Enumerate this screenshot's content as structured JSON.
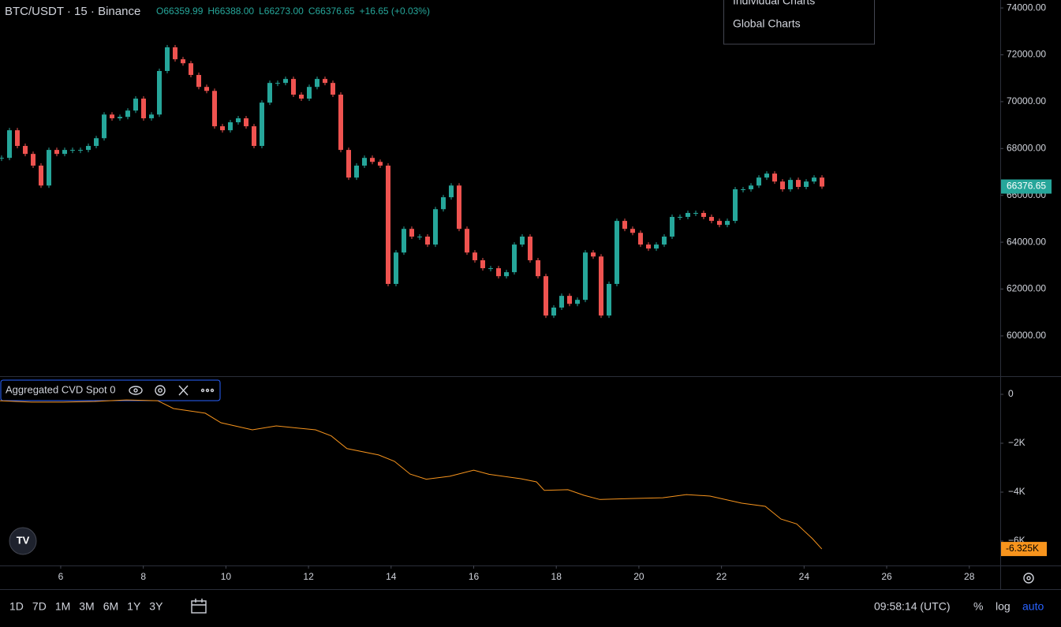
{
  "chart_data": [
    {
      "type": "candlestick",
      "title": "BTC/USDT · 15 · Binance",
      "legend": [
        "O66359.99",
        "H66388.00",
        "L66273.00",
        "C66376.65",
        "+16.65 (+0.03%)"
      ],
      "up_color": "#26a69a",
      "down_color": "#ef5350",
      "close": [
        67600,
        68780,
        68110,
        67770,
        67270,
        66420,
        67940,
        67770,
        67940,
        67940,
        67940,
        68110,
        68440,
        69450,
        69290,
        69350,
        69620,
        70130,
        69290,
        69450,
        71310,
        72320,
        71810,
        71640,
        71140,
        70630,
        70460,
        68950,
        68780,
        69120,
        69290,
        68950,
        68110,
        69960,
        70800,
        70800,
        70970,
        70300,
        70130,
        70630,
        70970,
        70800,
        70300,
        67940,
        66760,
        67270,
        67600,
        67430,
        67270,
        62220,
        63560,
        64570,
        64240,
        64240,
        63900,
        65410,
        65920,
        66420,
        64570,
        63560,
        63230,
        62890,
        62890,
        62550,
        62720,
        63900,
        64240,
        63230,
        62550,
        60870,
        61210,
        61710,
        61370,
        61540,
        63560,
        63390,
        60870,
        62220,
        64910,
        64570,
        64400,
        63900,
        63730,
        63900,
        64240,
        65080,
        65080,
        65250,
        65250,
        65080,
        64910,
        64740,
        64910,
        66260,
        66260,
        66420,
        66760,
        66930,
        66590,
        66260,
        66660,
        66360,
        66590,
        66760,
        66376.65
      ],
      "ylim": [
        58280,
        74340
      ],
      "yticks": [
        60000,
        62000,
        64000,
        66000,
        68000,
        70000,
        72000,
        74000
      ],
      "ytick_labels": [
        "60000.00",
        "62000.00",
        "64000.00",
        "66000.00",
        "68000.00",
        "70000.00",
        "72000.00",
        "74000.00"
      ],
      "last_color": "#26a69a"
    },
    {
      "type": "line",
      "title": "Aggregated CVD Spot 0",
      "color": "#f7941d",
      "x": [
        4.53,
        5.29,
        6.06,
        6.82,
        7.59,
        8.35,
        8.73,
        9.5,
        9.88,
        10.64,
        11.22,
        12.17,
        12.55,
        12.93,
        13.7,
        14.08,
        14.46,
        14.85,
        15.42,
        16.0,
        16.37,
        17.14,
        17.52,
        17.71,
        18.28,
        18.67,
        19.05,
        19.81,
        20.58,
        21.15,
        21.72,
        22.49,
        23.06,
        23.44,
        23.82,
        24.2,
        24.43
      ],
      "values": [
        -260,
        -320,
        -320,
        -290,
        -230,
        -260,
        -580,
        -770,
        -1160,
        -1450,
        -1290,
        -1450,
        -1700,
        -2220,
        -2480,
        -2740,
        -3260,
        -3470,
        -3350,
        -3100,
        -3270,
        -3450,
        -3580,
        -3930,
        -3900,
        -4130,
        -4300,
        -4260,
        -4230,
        -4100,
        -4160,
        -4450,
        -4580,
        -5100,
        -5300,
        -5900,
        -6325
      ],
      "last_label": "-6.325K",
      "ylim": [
        -7000,
        710
      ],
      "yticks": [
        {
          "value": -6000,
          "label": "−6K"
        },
        {
          "value": -4000,
          "label": "−4K"
        },
        {
          "value": -2000,
          "label": "−2K"
        },
        0
      ],
      "xlim": [
        4.53,
        28.75
      ],
      "xticks": [
        6,
        8,
        10,
        12,
        14,
        16,
        18,
        20,
        22,
        24,
        26,
        28
      ]
    }
  ],
  "menu": [
    "Individual Charts",
    "Global Charts"
  ],
  "ranges": [
    "1D",
    "7D",
    "1M",
    "3M",
    "6M",
    "1Y",
    "3Y"
  ],
  "clock": "09:58:14 (UTC)",
  "scale_buttons": [
    "%",
    "log",
    "auto"
  ]
}
